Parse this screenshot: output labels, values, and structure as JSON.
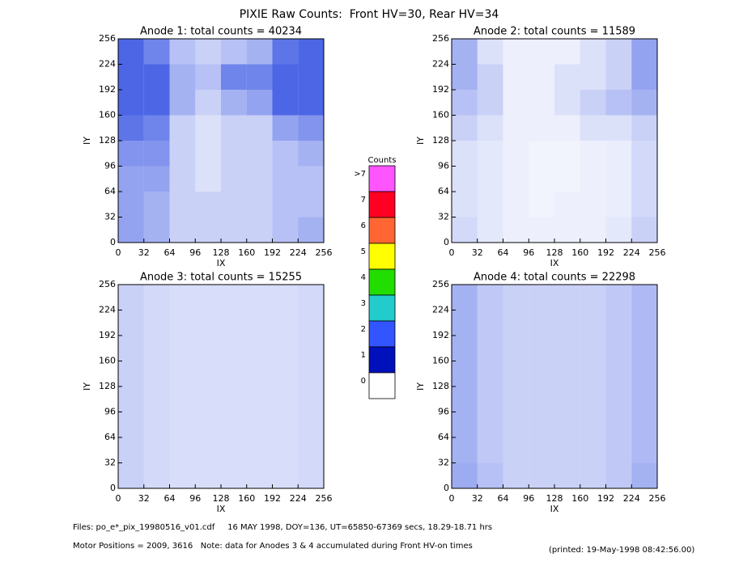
{
  "title": "PIXIE Raw Counts:  Front HV=30, Rear HV=34",
  "chart_data": [
    {
      "type": "heatmap",
      "title": "Anode 1: total counts = 40234",
      "x_label": "IX",
      "y_label": "IY",
      "xlim": [
        0,
        256
      ],
      "ylim": [
        0,
        256
      ],
      "xticks": [
        0,
        32,
        64,
        96,
        128,
        160,
        192,
        224,
        256
      ],
      "yticks": [
        0,
        32,
        64,
        96,
        128,
        160,
        192,
        224,
        256
      ],
      "color": "#1133dd",
      "z": [
        [
          1.6,
          0.8,
          0.4,
          0.3,
          0.4,
          0.5,
          0.9,
          1.6
        ],
        [
          1.8,
          1.0,
          0.5,
          0.4,
          0.8,
          0.8,
          1.0,
          1.6
        ],
        [
          1.4,
          1.0,
          0.5,
          0.3,
          0.5,
          0.6,
          1.0,
          1.2
        ],
        [
          0.9,
          0.8,
          0.3,
          0.2,
          0.3,
          0.3,
          0.6,
          0.7
        ],
        [
          0.7,
          0.7,
          0.3,
          0.2,
          0.3,
          0.3,
          0.4,
          0.5
        ],
        [
          0.6,
          0.6,
          0.3,
          0.2,
          0.3,
          0.3,
          0.4,
          0.4
        ],
        [
          0.6,
          0.5,
          0.3,
          0.3,
          0.3,
          0.3,
          0.4,
          0.4
        ],
        [
          0.6,
          0.5,
          0.3,
          0.3,
          0.3,
          0.3,
          0.4,
          0.5
        ]
      ]
    },
    {
      "type": "heatmap",
      "title": "Anode 2: total counts = 11589",
      "x_label": "IX",
      "y_label": "IY",
      "xlim": [
        0,
        256
      ],
      "ylim": [
        0,
        256
      ],
      "xticks": [
        0,
        32,
        64,
        96,
        128,
        160,
        192,
        224,
        256
      ],
      "yticks": [
        0,
        32,
        64,
        96,
        128,
        160,
        192,
        224,
        256
      ],
      "color": "#1133dd",
      "z": [
        [
          0.5,
          0.2,
          0.1,
          0.1,
          0.1,
          0.2,
          0.3,
          0.6
        ],
        [
          0.5,
          0.3,
          0.1,
          0.1,
          0.2,
          0.2,
          0.3,
          0.6
        ],
        [
          0.4,
          0.3,
          0.1,
          0.1,
          0.2,
          0.3,
          0.4,
          0.5
        ],
        [
          0.3,
          0.2,
          0.1,
          0.1,
          0.1,
          0.2,
          0.2,
          0.3
        ],
        [
          0.2,
          0.15,
          0.1,
          0.08,
          0.08,
          0.1,
          0.12,
          0.25
        ],
        [
          0.2,
          0.15,
          0.1,
          0.08,
          0.08,
          0.1,
          0.12,
          0.25
        ],
        [
          0.2,
          0.15,
          0.1,
          0.08,
          0.1,
          0.1,
          0.12,
          0.25
        ],
        [
          0.25,
          0.15,
          0.1,
          0.1,
          0.1,
          0.1,
          0.15,
          0.3
        ]
      ]
    },
    {
      "type": "heatmap",
      "title": "Anode 3: total counts = 15255",
      "x_label": "IX",
      "y_label": "IY",
      "xlim": [
        0,
        256
      ],
      "ylim": [
        0,
        256
      ],
      "xticks": [
        0,
        32,
        64,
        96,
        128,
        160,
        192,
        224,
        256
      ],
      "yticks": [
        0,
        32,
        64,
        96,
        128,
        160,
        192,
        224,
        256
      ],
      "color": "#1133dd",
      "z": [
        [
          0.3,
          0.25,
          0.22,
          0.22,
          0.22,
          0.22,
          0.22,
          0.25
        ],
        [
          0.3,
          0.25,
          0.22,
          0.22,
          0.22,
          0.22,
          0.22,
          0.25
        ],
        [
          0.3,
          0.25,
          0.22,
          0.22,
          0.22,
          0.22,
          0.22,
          0.25
        ],
        [
          0.3,
          0.25,
          0.22,
          0.22,
          0.22,
          0.22,
          0.22,
          0.25
        ],
        [
          0.3,
          0.25,
          0.22,
          0.22,
          0.22,
          0.22,
          0.22,
          0.25
        ],
        [
          0.3,
          0.25,
          0.22,
          0.22,
          0.22,
          0.22,
          0.22,
          0.25
        ],
        [
          0.3,
          0.25,
          0.22,
          0.22,
          0.22,
          0.22,
          0.22,
          0.25
        ],
        [
          0.3,
          0.25,
          0.22,
          0.22,
          0.22,
          0.22,
          0.22,
          0.25
        ]
      ]
    },
    {
      "type": "heatmap",
      "title": "Anode 4: total counts = 22298",
      "x_label": "IX",
      "y_label": "IY",
      "xlim": [
        0,
        256
      ],
      "ylim": [
        0,
        256
      ],
      "xticks": [
        0,
        32,
        64,
        96,
        128,
        160,
        192,
        224,
        256
      ],
      "yticks": [
        0,
        32,
        64,
        96,
        128,
        160,
        192,
        224,
        256
      ],
      "color": "#1133dd",
      "z": [
        [
          0.5,
          0.35,
          0.3,
          0.3,
          0.3,
          0.3,
          0.35,
          0.45
        ],
        [
          0.5,
          0.35,
          0.3,
          0.3,
          0.3,
          0.3,
          0.35,
          0.45
        ],
        [
          0.5,
          0.35,
          0.3,
          0.3,
          0.3,
          0.3,
          0.35,
          0.45
        ],
        [
          0.5,
          0.35,
          0.3,
          0.3,
          0.3,
          0.3,
          0.35,
          0.45
        ],
        [
          0.5,
          0.35,
          0.3,
          0.3,
          0.3,
          0.3,
          0.35,
          0.45
        ],
        [
          0.5,
          0.35,
          0.3,
          0.3,
          0.3,
          0.3,
          0.35,
          0.45
        ],
        [
          0.5,
          0.35,
          0.3,
          0.3,
          0.3,
          0.3,
          0.35,
          0.45
        ],
        [
          0.55,
          0.4,
          0.3,
          0.3,
          0.3,
          0.3,
          0.35,
          0.5
        ]
      ]
    }
  ],
  "colorbar": {
    "title": "Counts",
    "labels": [
      ">7",
      "7",
      "6",
      "5",
      "4",
      "3",
      "2",
      "1",
      "0"
    ],
    "colors": [
      "#ff55ff",
      "#ff0022",
      "#ff6633",
      "#ffff00",
      "#22dd00",
      "#22cccc",
      "#3355ff",
      "#0011bb",
      "#ffffff"
    ]
  },
  "footer": {
    "files": "Files: po_e*_pix_19980516_v01.cdf     16 MAY 1998, DOY=136, UT=65850-67369 secs, 18.29-18.71 hrs",
    "motor": "Motor Positions = 2009, 3616   Note: data for Anodes 3 & 4 accumulated during Front HV-on times",
    "printed": "(printed: 19-May-1998 08:42:56.00)"
  }
}
